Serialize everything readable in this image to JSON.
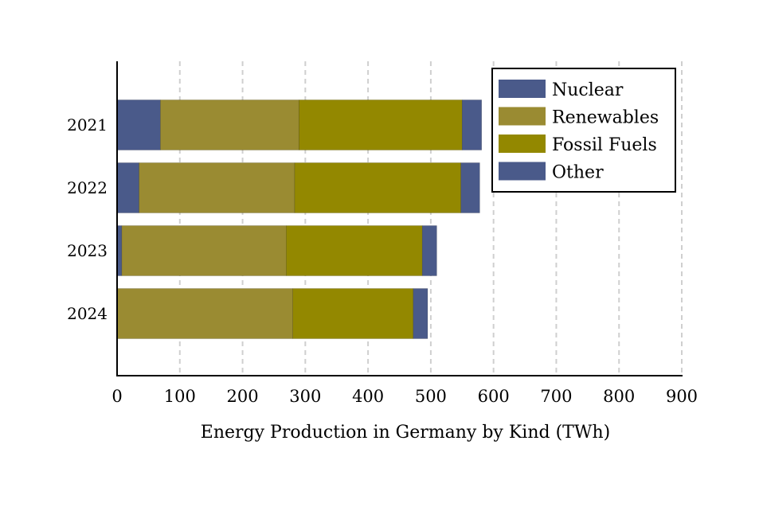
{
  "chart_data": {
    "type": "bar",
    "orientation": "horizontal",
    "stacked": true,
    "categories": [
      "2021",
      "2022",
      "2023",
      "2024"
    ],
    "series": [
      {
        "name": "Nuclear",
        "color": "#4a5a8a",
        "values": [
          69,
          35,
          7.5,
          0
        ]
      },
      {
        "name": "Renewables",
        "color": "#9a8b32",
        "values": [
          221,
          248,
          262,
          280
        ]
      },
      {
        "name": "Fossil Fuels",
        "color": "#938800",
        "values": [
          260,
          265,
          217,
          192
        ]
      },
      {
        "name": "Other",
        "color": "#4a5a8a",
        "values": [
          31,
          30,
          23,
          23
        ]
      }
    ],
    "title": "",
    "xlabel": "Energy Production in Germany by Kind (TWh)",
    "ylabel": "",
    "xlim": [
      0,
      900
    ],
    "xticks": [
      0,
      100,
      200,
      300,
      400,
      500,
      600,
      700,
      800,
      900
    ],
    "grid": "vertical dashed",
    "legend": "top-right"
  }
}
